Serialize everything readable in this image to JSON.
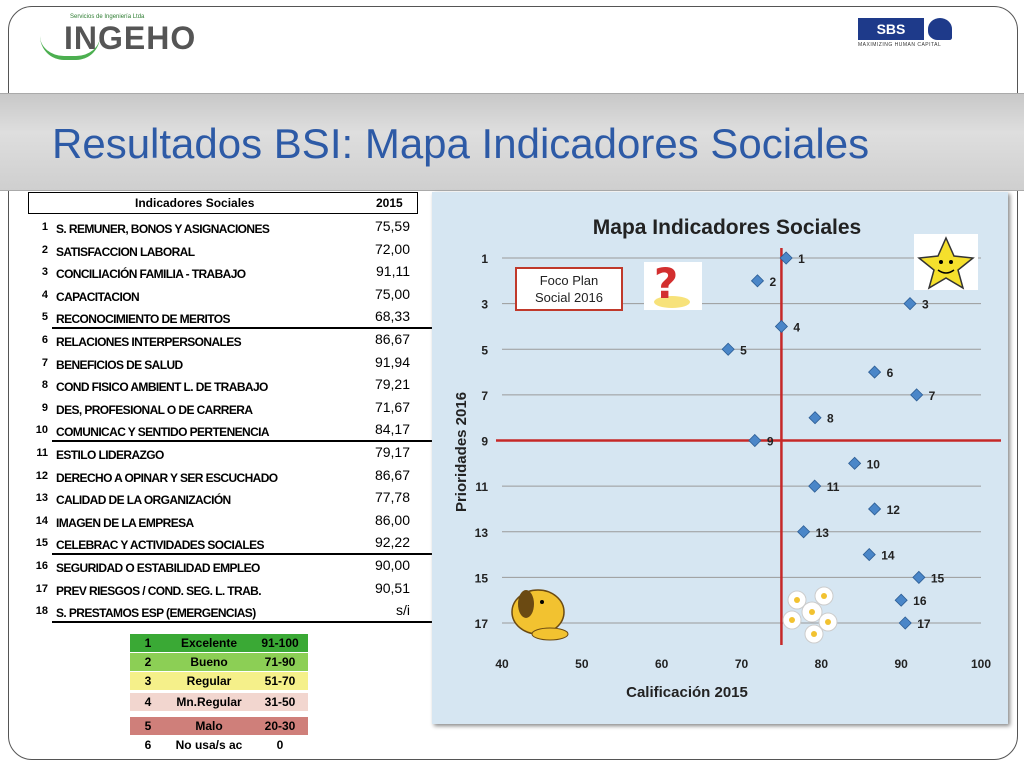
{
  "header": {
    "title": "Resultados BSI: Mapa Indicadores Sociales",
    "logo_left": {
      "name": "INGEHO",
      "tagline": "Servicios de Ingeniería Ltda"
    },
    "logo_right": {
      "name": "SBS",
      "tagline": "MAXIMIZING HUMAN CAPITAL"
    }
  },
  "indicators": {
    "header_label": "Indicadores Sociales",
    "header_year": "2015",
    "rows": [
      {
        "n": "1",
        "label": "S. REMUNER, BONOS Y ASIGNACIONES",
        "value": "75,59"
      },
      {
        "n": "2",
        "label": "SATISFACCION LABORAL",
        "value": "72,00"
      },
      {
        "n": "3",
        "label": "CONCILIACIÓN FAMILIA - TRABAJO",
        "value": "91,11"
      },
      {
        "n": "4",
        "label": "CAPACITACION",
        "value": "75,00"
      },
      {
        "n": "5",
        "label": "RECONOCIMIENTO DE MERITOS",
        "value": "68,33"
      },
      {
        "n": "6",
        "label": "RELACIONES INTERPERSONALES",
        "value": "86,67"
      },
      {
        "n": "7",
        "label": "BENEFICIOS DE SALUD",
        "value": "91,94"
      },
      {
        "n": "8",
        "label": "COND FISICO AMBIENT L. DE TRABAJO",
        "value": "79,21"
      },
      {
        "n": "9",
        "label": "DES, PROFESIONAL O DE CARRERA",
        "value": "71,67"
      },
      {
        "n": "10",
        "label": "COMUNICAC Y SENTIDO PERTENENCIA",
        "value": "84,17"
      },
      {
        "n": "11",
        "label": "ESTILO LIDERAZGO",
        "value": "79,17"
      },
      {
        "n": "12",
        "label": "DERECHO A OPINAR Y SER ESCUCHADO",
        "value": "86,67"
      },
      {
        "n": "13",
        "label": "CALIDAD DE LA ORGANIZACIÓN",
        "value": "77,78"
      },
      {
        "n": "14",
        "label": "IMAGEN DE LA EMPRESA",
        "value": "86,00"
      },
      {
        "n": "15",
        "label": "CELEBRAC Y ACTIVIDADES SOCIALES",
        "value": "92,22"
      },
      {
        "n": "16",
        "label": "SEGURIDAD O ESTABILIDAD EMPLEO",
        "value": "90,00"
      },
      {
        "n": "17",
        "label": "PREV RIESGOS / COND. SEG. L. TRAB.",
        "value": "90,51"
      },
      {
        "n": "18",
        "label": "S. PRESTAMOS ESP (EMERGENCIAS)",
        "value": "s/i"
      }
    ]
  },
  "scale_legend": [
    {
      "n": "1",
      "label": "Excelente",
      "range": "91-100",
      "color": "#3aa935"
    },
    {
      "n": "2",
      "label": "Bueno",
      "range": "71-90",
      "color": "#8ccf55"
    },
    {
      "n": "3",
      "label": "Regular",
      "range": "51-70",
      "color": "#f5f08a"
    },
    {
      "n": "4",
      "label": "Mn.Regular",
      "range": "31-50",
      "color": "#f2d6cf"
    },
    {
      "n": "5",
      "label": "Malo",
      "range": "20-30",
      "color": "#cf7f7a"
    },
    {
      "n": "6",
      "label": "No usa/s ac",
      "range": "0",
      "color": "#ffffff"
    }
  ],
  "chart_data": {
    "type": "scatter",
    "title": "Mapa Indicadores Sociales",
    "xlabel": "Calificación 2015",
    "ylabel": "Prioridades 2016",
    "xlim": [
      40,
      100
    ],
    "ylim": [
      17,
      1
    ],
    "x_ticks": [
      "40",
      "50",
      "60",
      "70",
      "80",
      "90",
      "100"
    ],
    "y_ticks": [
      "1",
      "3",
      "5",
      "7",
      "9",
      "11",
      "13",
      "15",
      "17"
    ],
    "reference_x": 75,
    "reference_y": 9,
    "annotation": "Foco Plan Social 2016",
    "marker_color": "#4a86c8",
    "points": [
      {
        "label": "1",
        "x": 75.59,
        "y": 1
      },
      {
        "label": "2",
        "x": 72.0,
        "y": 2
      },
      {
        "label": "3",
        "x": 91.11,
        "y": 3
      },
      {
        "label": "4",
        "x": 75.0,
        "y": 4
      },
      {
        "label": "5",
        "x": 68.33,
        "y": 5
      },
      {
        "label": "6",
        "x": 86.67,
        "y": 6
      },
      {
        "label": "7",
        "x": 91.94,
        "y": 7
      },
      {
        "label": "8",
        "x": 79.21,
        "y": 8
      },
      {
        "label": "9",
        "x": 71.67,
        "y": 9
      },
      {
        "label": "10",
        "x": 84.17,
        "y": 10
      },
      {
        "label": "11",
        "x": 79.17,
        "y": 11
      },
      {
        "label": "12",
        "x": 86.67,
        "y": 12
      },
      {
        "label": "13",
        "x": 77.78,
        "y": 13
      },
      {
        "label": "14",
        "x": 86.0,
        "y": 14
      },
      {
        "label": "15",
        "x": 92.22,
        "y": 15
      },
      {
        "label": "16",
        "x": 90.0,
        "y": 16
      },
      {
        "label": "17",
        "x": 90.51,
        "y": 17
      }
    ]
  }
}
